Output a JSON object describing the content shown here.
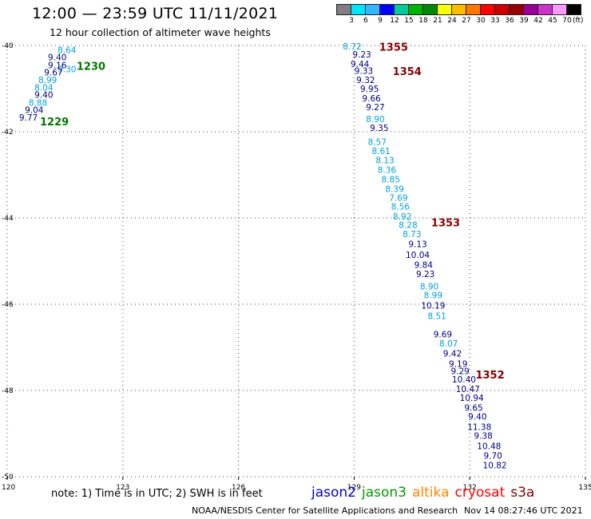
{
  "header": {
    "title": "12:00 — 23:59 UTC 11/11/2021",
    "subtitle": "12 hour collection of altimeter wave heights"
  },
  "color_scale": {
    "labels": [
      "3",
      "6",
      "9",
      "12",
      "15",
      "18",
      "21",
      "24",
      "27",
      "30",
      "33",
      "36",
      "39",
      "42",
      "45",
      "70"
    ],
    "unit": "(ft)",
    "colors": [
      "#7f7f7f",
      "#00e5ff",
      "#33b5ff",
      "#0000ff",
      "#00cc99",
      "#00b300",
      "#008800",
      "#ffff00",
      "#ffbb00",
      "#ff7700",
      "#ff0000",
      "#cc0000",
      "#990000",
      "#990099",
      "#cc33cc",
      "#ff99ff",
      "#000000"
    ]
  },
  "footer": {
    "note": "note: 1) Time is in UTC; 2) SWH is in feet",
    "credit": "NOAA/NESDIS Center for Satellite Applications and Research",
    "timestamp": "Nov 14 08:27:46 UTC 2021",
    "satellites": [
      {
        "name": "jason2",
        "color": "#0000cc"
      },
      {
        "name": "jason3",
        "color": "#009900"
      },
      {
        "name": "altika",
        "color": "#ff8800"
      },
      {
        "name": "cryosat",
        "color": "#ff0000"
      },
      {
        "name": "s3a",
        "color": "#880000"
      }
    ]
  },
  "chart_data": {
    "type": "scatter",
    "xlim": [
      120,
      135
    ],
    "ylim": [
      -50,
      -40
    ],
    "x_ticks": [
      "120",
      "123",
      "126",
      "129",
      "132",
      "135"
    ],
    "y_ticks": [
      "-40",
      "-42",
      "-44",
      "-46",
      "-48",
      "-50"
    ],
    "grid": "dotted",
    "series": [
      {
        "color": "#00a0e0",
        "points": [
          {
            "x": 121.55,
            "y": -40.1,
            "label": "8.64"
          },
          {
            "x": 121.55,
            "y": -40.55,
            "label": "9.30"
          }
        ]
      },
      {
        "color": "#000080",
        "points": [
          {
            "x": 121.3,
            "y": -40.27,
            "label": "9.40"
          },
          {
            "x": 121.3,
            "y": -40.45,
            "label": "9.16"
          },
          {
            "x": 121.2,
            "y": -40.62,
            "label": "9.67"
          },
          {
            "x": 120.95,
            "y": -41.14,
            "label": "9.40"
          },
          {
            "x": 120.7,
            "y": -41.49,
            "label": "9.04"
          },
          {
            "x": 120.55,
            "y": -41.67,
            "label": "9.77"
          }
        ]
      },
      {
        "color": "#00a0e0",
        "points": [
          {
            "x": 121.05,
            "y": -40.8,
            "label": "8.99"
          },
          {
            "x": 120.95,
            "y": -40.97,
            "label": "8.04"
          },
          {
            "x": 120.8,
            "y": -41.32,
            "label": "8.88"
          }
        ]
      },
      {
        "color": "#00a0e0",
        "points": [
          {
            "x": 128.95,
            "y": -40.02,
            "label": "8.72"
          },
          {
            "x": 129.55,
            "y": -41.7,
            "label": "8.90"
          },
          {
            "x": 129.6,
            "y": -42.23,
            "label": "8.57"
          },
          {
            "x": 129.7,
            "y": -42.44,
            "label": "8.61"
          },
          {
            "x": 129.8,
            "y": -42.66,
            "label": "8.13"
          },
          {
            "x": 129.85,
            "y": -42.88,
            "label": "8.36"
          },
          {
            "x": 129.95,
            "y": -43.1,
            "label": "8.85"
          },
          {
            "x": 130.05,
            "y": -43.32,
            "label": "8.39"
          },
          {
            "x": 130.15,
            "y": -43.53,
            "label": "7.69"
          },
          {
            "x": 130.2,
            "y": -43.73,
            "label": "8.56"
          },
          {
            "x": 130.25,
            "y": -43.96,
            "label": "8.92"
          },
          {
            "x": 130.4,
            "y": -44.16,
            "label": "8.28"
          },
          {
            "x": 130.5,
            "y": -44.37,
            "label": "8.73"
          },
          {
            "x": 130.95,
            "y": -45.58,
            "label": "8.90"
          },
          {
            "x": 131.05,
            "y": -45.79,
            "label": "8.99"
          },
          {
            "x": 131.15,
            "y": -46.27,
            "label": "8.51"
          },
          {
            "x": 131.45,
            "y": -46.91,
            "label": "8.07"
          }
        ]
      },
      {
        "color": "#000080",
        "points": [
          {
            "x": 129.2,
            "y": -40.2,
            "label": "9.23"
          },
          {
            "x": 129.25,
            "y": -40.58,
            "label": "9.33"
          },
          {
            "x": 129.3,
            "y": -40.8,
            "label": "9.32"
          },
          {
            "x": 129.4,
            "y": -41.0,
            "label": "9.95"
          },
          {
            "x": 129.45,
            "y": -41.22,
            "label": "9.66"
          },
          {
            "x": 129.55,
            "y": -41.43,
            "label": "9.27"
          },
          {
            "x": 129.65,
            "y": -41.91,
            "label": "9.35"
          },
          {
            "x": 130.65,
            "y": -44.6,
            "label": "9.13"
          },
          {
            "x": 130.65,
            "y": -44.85,
            "label": "10.04"
          },
          {
            "x": 130.8,
            "y": -45.08,
            "label": "9.84"
          },
          {
            "x": 130.85,
            "y": -45.3,
            "label": "9.23"
          },
          {
            "x": 131.05,
            "y": -46.03,
            "label": "10.19"
          },
          {
            "x": 131.3,
            "y": -46.69,
            "label": "9.69"
          },
          {
            "x": 131.55,
            "y": -47.14,
            "label": "9.42"
          },
          {
            "x": 131.7,
            "y": -47.38,
            "label": "9.19"
          },
          {
            "x": 131.75,
            "y": -47.55,
            "label": "9.29"
          },
          {
            "x": 131.85,
            "y": -47.74,
            "label": "10.40"
          },
          {
            "x": 131.95,
            "y": -47.96,
            "label": "10.47"
          },
          {
            "x": 132.05,
            "y": -48.17,
            "label": "10.94"
          },
          {
            "x": 132.1,
            "y": -48.4,
            "label": "9.65"
          },
          {
            "x": 132.2,
            "y": -48.6,
            "label": "9.40"
          },
          {
            "x": 132.25,
            "y": -48.84,
            "label": "11.38"
          },
          {
            "x": 132.35,
            "y": -49.05,
            "label": "9.38"
          },
          {
            "x": 132.5,
            "y": -49.29,
            "label": "10.48"
          },
          {
            "x": 132.6,
            "y": -49.51,
            "label": "9.70"
          },
          {
            "x": 132.65,
            "y": -49.73,
            "label": "10.82"
          }
        ]
      },
      {
        "color": "#000080",
        "points": [
          {
            "x": 129.15,
            "y": -40.43,
            "label": "9.44"
          }
        ]
      }
    ],
    "pass_labels": [
      {
        "x": 121.8,
        "y": -40.47,
        "label": "1230",
        "color": "#007700"
      },
      {
        "x": 120.85,
        "y": -41.76,
        "label": "1229",
        "color": "#007700"
      },
      {
        "x": 129.65,
        "y": -40.03,
        "label": "1355",
        "color": "#880000"
      },
      {
        "x": 130.0,
        "y": -40.59,
        "label": "1354",
        "color": "#880000"
      },
      {
        "x": 131.0,
        "y": -44.1,
        "label": "1353",
        "color": "#880000"
      },
      {
        "x": 132.15,
        "y": -47.63,
        "label": "1352",
        "color": "#880000"
      }
    ]
  }
}
